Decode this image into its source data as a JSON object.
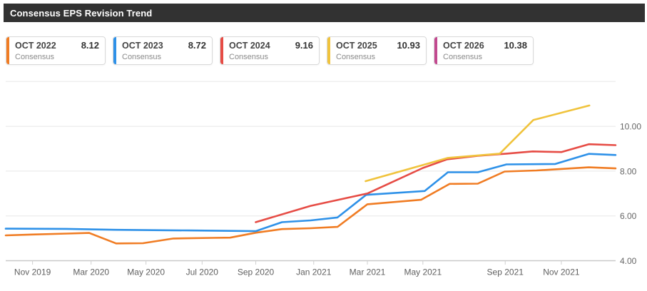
{
  "title_bar": {
    "title": "Consensus EPS Revision Trend"
  },
  "legend": {
    "cards": [
      {
        "period": "OCT 2022",
        "value": "8.12",
        "sublabel": "Consensus",
        "color": "#f07c23"
      },
      {
        "period": "OCT 2023",
        "value": "8.72",
        "sublabel": "Consensus",
        "color": "#2e91e8"
      },
      {
        "period": "OCT 2024",
        "value": "9.16",
        "sublabel": "Consensus",
        "color": "#e64c45"
      },
      {
        "period": "OCT 2025",
        "value": "10.93",
        "sublabel": "Consensus",
        "color": "#f0c33c"
      },
      {
        "period": "OCT 2026",
        "value": "10.38",
        "sublabel": "Consensus",
        "color": "#c2498f"
      }
    ]
  },
  "chart_data": {
    "type": "line",
    "title": "Consensus EPS Revision Trend",
    "xlabel": "",
    "ylabel": "",
    "ylim": [
      4,
      12
    ],
    "grid": true,
    "legend_position": "top",
    "y_ticks": [
      {
        "value": 4,
        "label": "4.00"
      },
      {
        "value": 6,
        "label": "6.00"
      },
      {
        "value": 8,
        "label": "8.00"
      },
      {
        "value": 10,
        "label": "10.00"
      },
      {
        "value": 12,
        "label": ""
      }
    ],
    "x_ticks": [
      {
        "label": "Nov 2019",
        "pos": 0.044
      },
      {
        "label": "Mar 2020",
        "pos": 0.14
      },
      {
        "label": "May 2020",
        "pos": 0.23
      },
      {
        "label": "Jul 2020",
        "pos": 0.322
      },
      {
        "label": "Sep 2020",
        "pos": 0.41
      },
      {
        "label": "Jan 2021",
        "pos": 0.505
      },
      {
        "label": "Mar 2021",
        "pos": 0.593
      },
      {
        "label": "May 2021",
        "pos": 0.684
      },
      {
        "label": "Sep 2021",
        "pos": 0.819
      },
      {
        "label": "Nov 2021",
        "pos": 0.911
      }
    ],
    "series": [
      {
        "name": "OCT 2022 Consensus",
        "color": "#f07c23",
        "final_value": 8.12,
        "points": [
          [
            0.0,
            5.13
          ],
          [
            0.044,
            5.17
          ],
          [
            0.1,
            5.21
          ],
          [
            0.137,
            5.24
          ],
          [
            0.181,
            4.77
          ],
          [
            0.225,
            4.78
          ],
          [
            0.275,
            4.99
          ],
          [
            0.34,
            5.02
          ],
          [
            0.368,
            5.03
          ],
          [
            0.41,
            5.25
          ],
          [
            0.453,
            5.41
          ],
          [
            0.5,
            5.45
          ],
          [
            0.544,
            5.51
          ],
          [
            0.593,
            6.52
          ],
          [
            0.681,
            6.72
          ],
          [
            0.728,
            7.43
          ],
          [
            0.774,
            7.44
          ],
          [
            0.818,
            7.98
          ],
          [
            0.87,
            8.03
          ],
          [
            0.956,
            8.17
          ],
          [
            1.0,
            8.12
          ]
        ]
      },
      {
        "name": "OCT 2023 Consensus",
        "color": "#2e91e8",
        "final_value": 8.72,
        "points": [
          [
            0.0,
            5.43
          ],
          [
            0.1,
            5.42
          ],
          [
            0.18,
            5.38
          ],
          [
            0.3,
            5.35
          ],
          [
            0.41,
            5.32
          ],
          [
            0.453,
            5.72
          ],
          [
            0.5,
            5.8
          ],
          [
            0.544,
            5.93
          ],
          [
            0.591,
            6.94
          ],
          [
            0.687,
            7.11
          ],
          [
            0.725,
            7.95
          ],
          [
            0.774,
            7.95
          ],
          [
            0.821,
            8.3
          ],
          [
            0.901,
            8.32
          ],
          [
            0.956,
            8.77
          ],
          [
            1.0,
            8.72
          ]
        ]
      },
      {
        "name": "OCT 2024 Consensus",
        "color": "#e64c45",
        "final_value": 9.16,
        "points": [
          [
            0.41,
            5.72
          ],
          [
            0.5,
            6.45
          ],
          [
            0.593,
            7.0
          ],
          [
            0.684,
            8.14
          ],
          [
            0.724,
            8.53
          ],
          [
            0.774,
            8.68
          ],
          [
            0.821,
            8.78
          ],
          [
            0.864,
            8.88
          ],
          [
            0.911,
            8.85
          ],
          [
            0.956,
            9.2
          ],
          [
            1.0,
            9.16
          ]
        ]
      },
      {
        "name": "OCT 2025 Consensus",
        "color": "#f0c33c",
        "final_value": 10.93,
        "points": [
          [
            0.59,
            7.55
          ],
          [
            0.684,
            8.27
          ],
          [
            0.725,
            8.59
          ],
          [
            0.81,
            8.78
          ],
          [
            0.865,
            10.28
          ],
          [
            0.957,
            10.93
          ]
        ]
      },
      {
        "name": "OCT 2026 Consensus",
        "color": "#c2498f",
        "final_value": 10.38,
        "points": []
      }
    ]
  },
  "chart_colors": {
    "grid": "#e8e8e8",
    "axis": "#c9c9c9",
    "tick": "#cfcfcf"
  }
}
